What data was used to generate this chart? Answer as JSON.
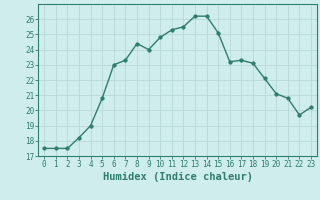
{
  "x": [
    0,
    1,
    2,
    3,
    4,
    5,
    6,
    7,
    8,
    9,
    10,
    11,
    12,
    13,
    14,
    15,
    16,
    17,
    18,
    19,
    20,
    21,
    22,
    23
  ],
  "y": [
    17.5,
    17.5,
    17.5,
    18.2,
    19.0,
    20.8,
    23.0,
    23.3,
    24.4,
    24.0,
    24.8,
    25.3,
    25.5,
    26.2,
    26.2,
    25.1,
    23.2,
    23.3,
    23.1,
    22.1,
    21.1,
    20.8,
    19.7,
    20.2
  ],
  "line_color": "#2e7d6e",
  "bg_color": "#d0eded",
  "grid_color": "#b8d8d8",
  "xlabel": "Humidex (Indice chaleur)",
  "xlim": [
    -0.5,
    23.5
  ],
  "ylim": [
    17,
    27
  ],
  "yticks": [
    17,
    18,
    19,
    20,
    21,
    22,
    23,
    24,
    25,
    26
  ],
  "xticks": [
    0,
    1,
    2,
    3,
    4,
    5,
    6,
    7,
    8,
    9,
    10,
    11,
    12,
    13,
    14,
    15,
    16,
    17,
    18,
    19,
    20,
    21,
    22,
    23
  ],
  "tick_label_fontsize": 5.5,
  "xlabel_fontsize": 7.5,
  "marker": "o",
  "markersize": 2.5,
  "linewidth": 1.0
}
